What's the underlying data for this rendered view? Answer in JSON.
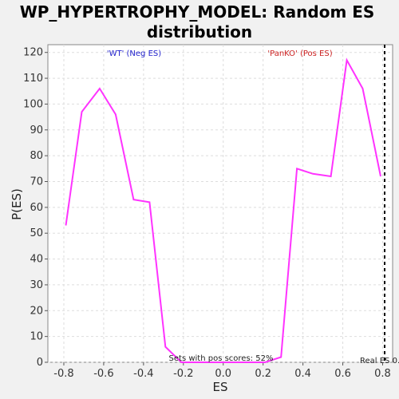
{
  "chart_data": {
    "type": "line",
    "title_line1": "WP_HYPERTROPHY_MODEL: Random ES",
    "title_line2": "distribution",
    "xlabel": "ES",
    "ylabel": "P(ES)",
    "xlim": [
      -0.88,
      0.85
    ],
    "ylim": [
      0,
      123
    ],
    "xticks": [
      -0.8,
      -0.6,
      -0.4,
      -0.2,
      0.0,
      0.2,
      0.4,
      0.6,
      0.8
    ],
    "xtick_labels": [
      "-0.8",
      "-0.6",
      "-0.4",
      "-0.2",
      "0.0",
      "0.2",
      "0.4",
      "0.6",
      "0.8"
    ],
    "yticks": [
      0,
      10,
      20,
      30,
      40,
      50,
      60,
      70,
      80,
      90,
      100,
      110,
      120
    ],
    "ytick_labels": [
      "0",
      "10",
      "20",
      "30",
      "40",
      "50",
      "60",
      "70",
      "80",
      "90",
      "100",
      "110",
      "120"
    ],
    "grid": true,
    "line_color": "#ff33ff",
    "series": [
      {
        "x": [
          -0.79,
          -0.71,
          -0.62,
          -0.54,
          -0.45,
          -0.37,
          -0.29,
          -0.21,
          0.21,
          0.29,
          0.37,
          0.45,
          0.54,
          0.62,
          0.7,
          0.79
        ],
        "y": [
          53,
          97,
          106,
          96,
          63,
          62,
          6,
          0,
          0,
          2,
          75,
          73,
          72,
          117,
          106,
          72
        ]
      }
    ],
    "annotations": {
      "neg_label": "'WT' (Neg ES)",
      "neg_color": "#2222cc",
      "pos_label": "'PanKO' (Pos ES)",
      "pos_color": "#cc2222",
      "pos_scores": "Sets with pos scores: 52%",
      "real_es": "Real ES 0.",
      "real_es_x": 0.81
    }
  }
}
